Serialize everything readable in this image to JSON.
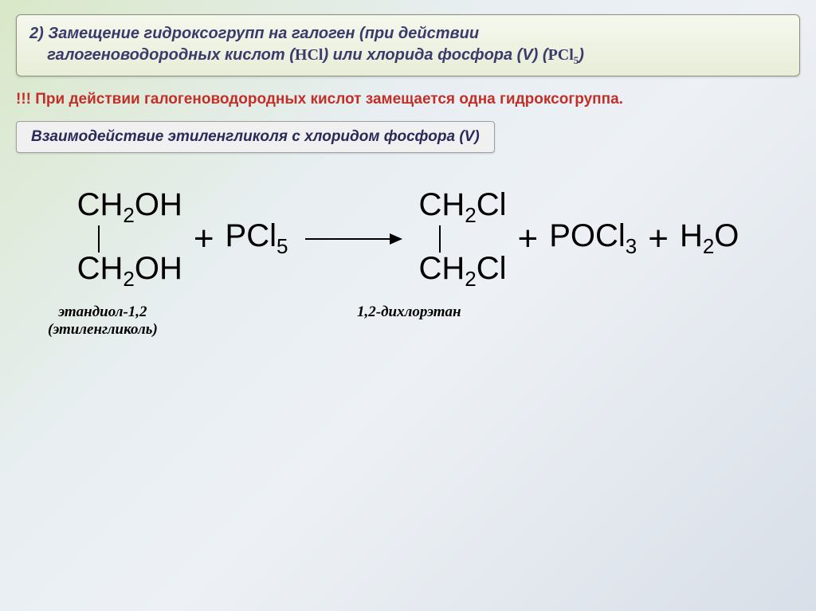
{
  "header": {
    "line1_prefix": "2) Замещение гидроксогрупп на галоген (при действии",
    "line2_prefix": "галогеноводородных кислот (",
    "hcl": "HCl",
    "line2_mid": ") или хлорида фосфора (V) (",
    "pcl5_base": "PCl",
    "pcl5_sub": "5",
    "line2_end": ")"
  },
  "warning": "!!! При действии галогеноводородных кислот замещается одна гидроксогруппа.",
  "subheader": "Взаимодействие этиленгликоля с хлоридом фосфора (V)",
  "reaction": {
    "reagent1": {
      "line1_a": "CH",
      "line1_sub": "2",
      "line1_b": "OH",
      "line2_a": "CH",
      "line2_sub": "2",
      "line2_b": "OH"
    },
    "plus": "+",
    "reagent2": {
      "base": "PCl",
      "sub": "5"
    },
    "product1": {
      "line1_a": "CH",
      "line1_sub": "2",
      "line1_b": "Cl",
      "line2_a": "CH",
      "line2_sub": "2",
      "line2_b": "Cl"
    },
    "product2": {
      "base": "POCl",
      "sub": "3"
    },
    "product3": {
      "a": "H",
      "sub": "2",
      "b": "O"
    }
  },
  "labels": {
    "left_line1": "этандиол-1,2",
    "left_line2": "(этиленгликоль)",
    "right": "1,2-дихлорэтан"
  }
}
